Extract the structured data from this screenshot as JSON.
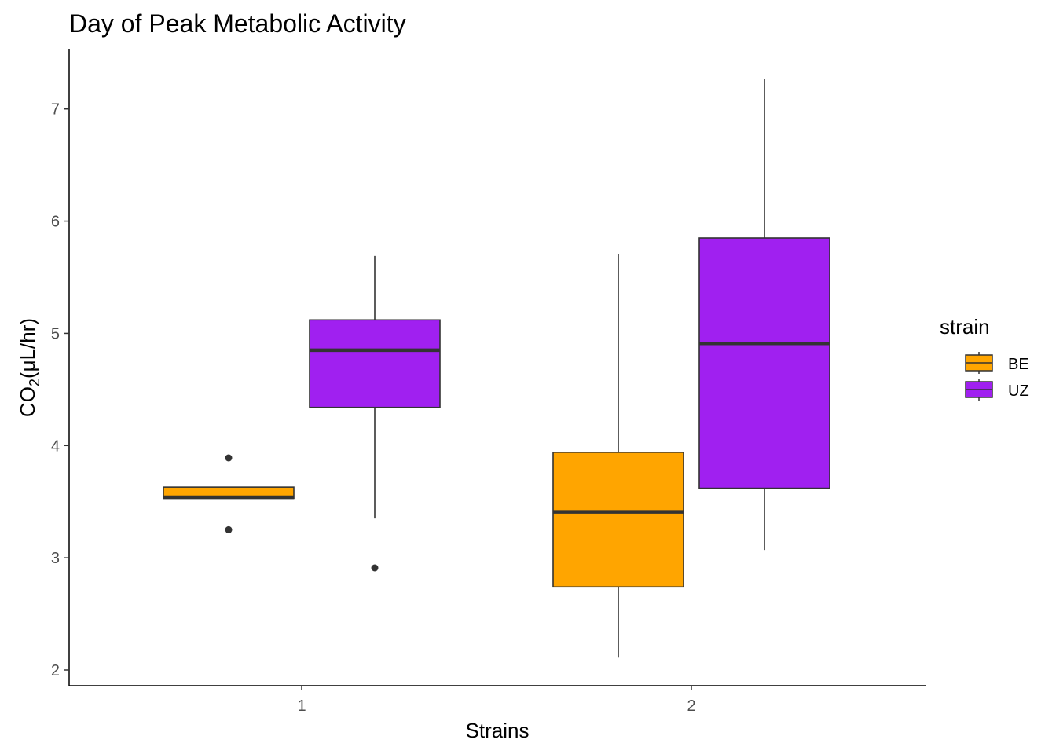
{
  "chart_data": {
    "type": "boxplot",
    "title": "Day of Peak Metabolic Activity",
    "xlabel": "Strains",
    "ylabel": {
      "main": "CO",
      "sub": "2",
      "unit": "(μL/hr)"
    },
    "x_categories": [
      "1",
      "2"
    ],
    "y_ticks": [
      2,
      3,
      4,
      5,
      6,
      7
    ],
    "ylim": [
      1.86,
      7.53
    ],
    "grid": false,
    "legend": {
      "title": "strain",
      "position": "right",
      "entries": [
        "BE",
        "UZ"
      ]
    },
    "colors": {
      "BE": "#FFA500",
      "UZ": "#A020F0",
      "outline": "#333333"
    },
    "boxes": [
      {
        "category": "1",
        "series": "BE",
        "whisker_low": 3.53,
        "q1": 3.53,
        "median": 3.54,
        "q3": 3.63,
        "whisker_high": 3.63,
        "outliers": [
          3.89,
          3.25
        ]
      },
      {
        "category": "1",
        "series": "UZ",
        "whisker_low": 3.35,
        "q1": 4.34,
        "median": 4.85,
        "q3": 5.12,
        "whisker_high": 5.69,
        "outliers": [
          2.91
        ]
      },
      {
        "category": "2",
        "series": "BE",
        "whisker_low": 2.11,
        "q1": 2.74,
        "median": 3.41,
        "q3": 3.94,
        "whisker_high": 5.71,
        "outliers": []
      },
      {
        "category": "2",
        "series": "UZ",
        "whisker_low": 3.07,
        "q1": 3.62,
        "median": 4.91,
        "q3": 5.85,
        "whisker_high": 7.27,
        "outliers": []
      }
    ]
  }
}
